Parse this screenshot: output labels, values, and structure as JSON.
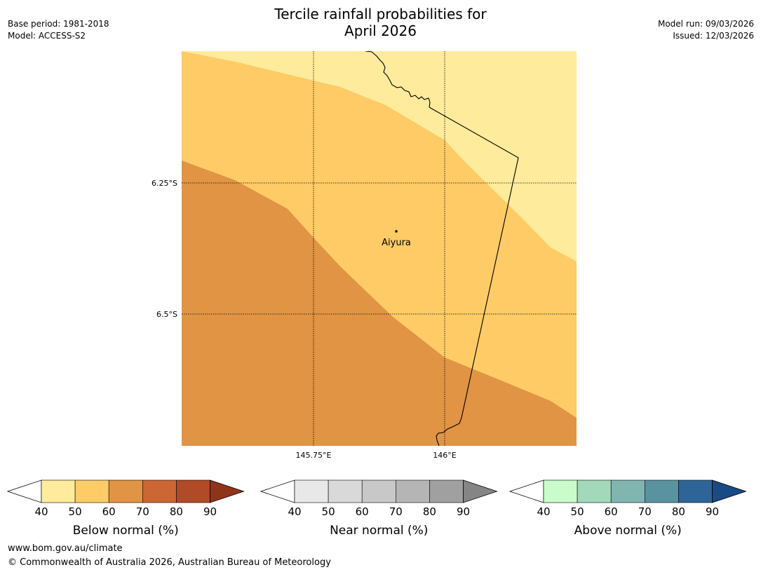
{
  "title": {
    "line1": "Tercile rainfall probabilities for",
    "line2": "April 2026"
  },
  "meta": {
    "base_period": "Base period: 1981-2018",
    "model": "Model: ACCESS-S2",
    "model_run": "Model run: 09/03/2026",
    "issued": "Issued: 12/03/2026"
  },
  "map": {
    "latitude_labels": [
      "6.25°S",
      "6.5°S"
    ],
    "longitude_labels": [
      "145.75°E",
      "146°E"
    ],
    "place": "Aiyura",
    "colors": {
      "band_40_50": "#ffeb9c",
      "band_50_60": "#fecb66",
      "band_60_70": "#e09444",
      "coastline": "#000000"
    }
  },
  "legends": [
    {
      "label": "Below normal (%)",
      "ticks": [
        "40",
        "50",
        "60",
        "70",
        "80",
        "90"
      ],
      "colors": [
        "#ffeb9c",
        "#fecb66",
        "#e09444",
        "#cc6633",
        "#b04a27",
        "#903419"
      ]
    },
    {
      "label": "Near normal (%)",
      "ticks": [
        "40",
        "50",
        "60",
        "70",
        "80",
        "90"
      ],
      "colors": [
        "#e8e8e8",
        "#d9d9d9",
        "#c8c8c8",
        "#b5b5b5",
        "#a0a0a0",
        "#858585"
      ]
    },
    {
      "label": "Above normal (%)",
      "ticks": [
        "40",
        "50",
        "60",
        "70",
        "80",
        "90"
      ],
      "colors": [
        "#c9fbcb",
        "#a3d9bb",
        "#80b5b0",
        "#5a93a0",
        "#2e6598",
        "#184b85"
      ]
    }
  ],
  "footer": {
    "url": "www.bom.gov.au/climate",
    "copyright": "© Commonwealth of Australia 2026, Australian Bureau of Meteorology"
  }
}
